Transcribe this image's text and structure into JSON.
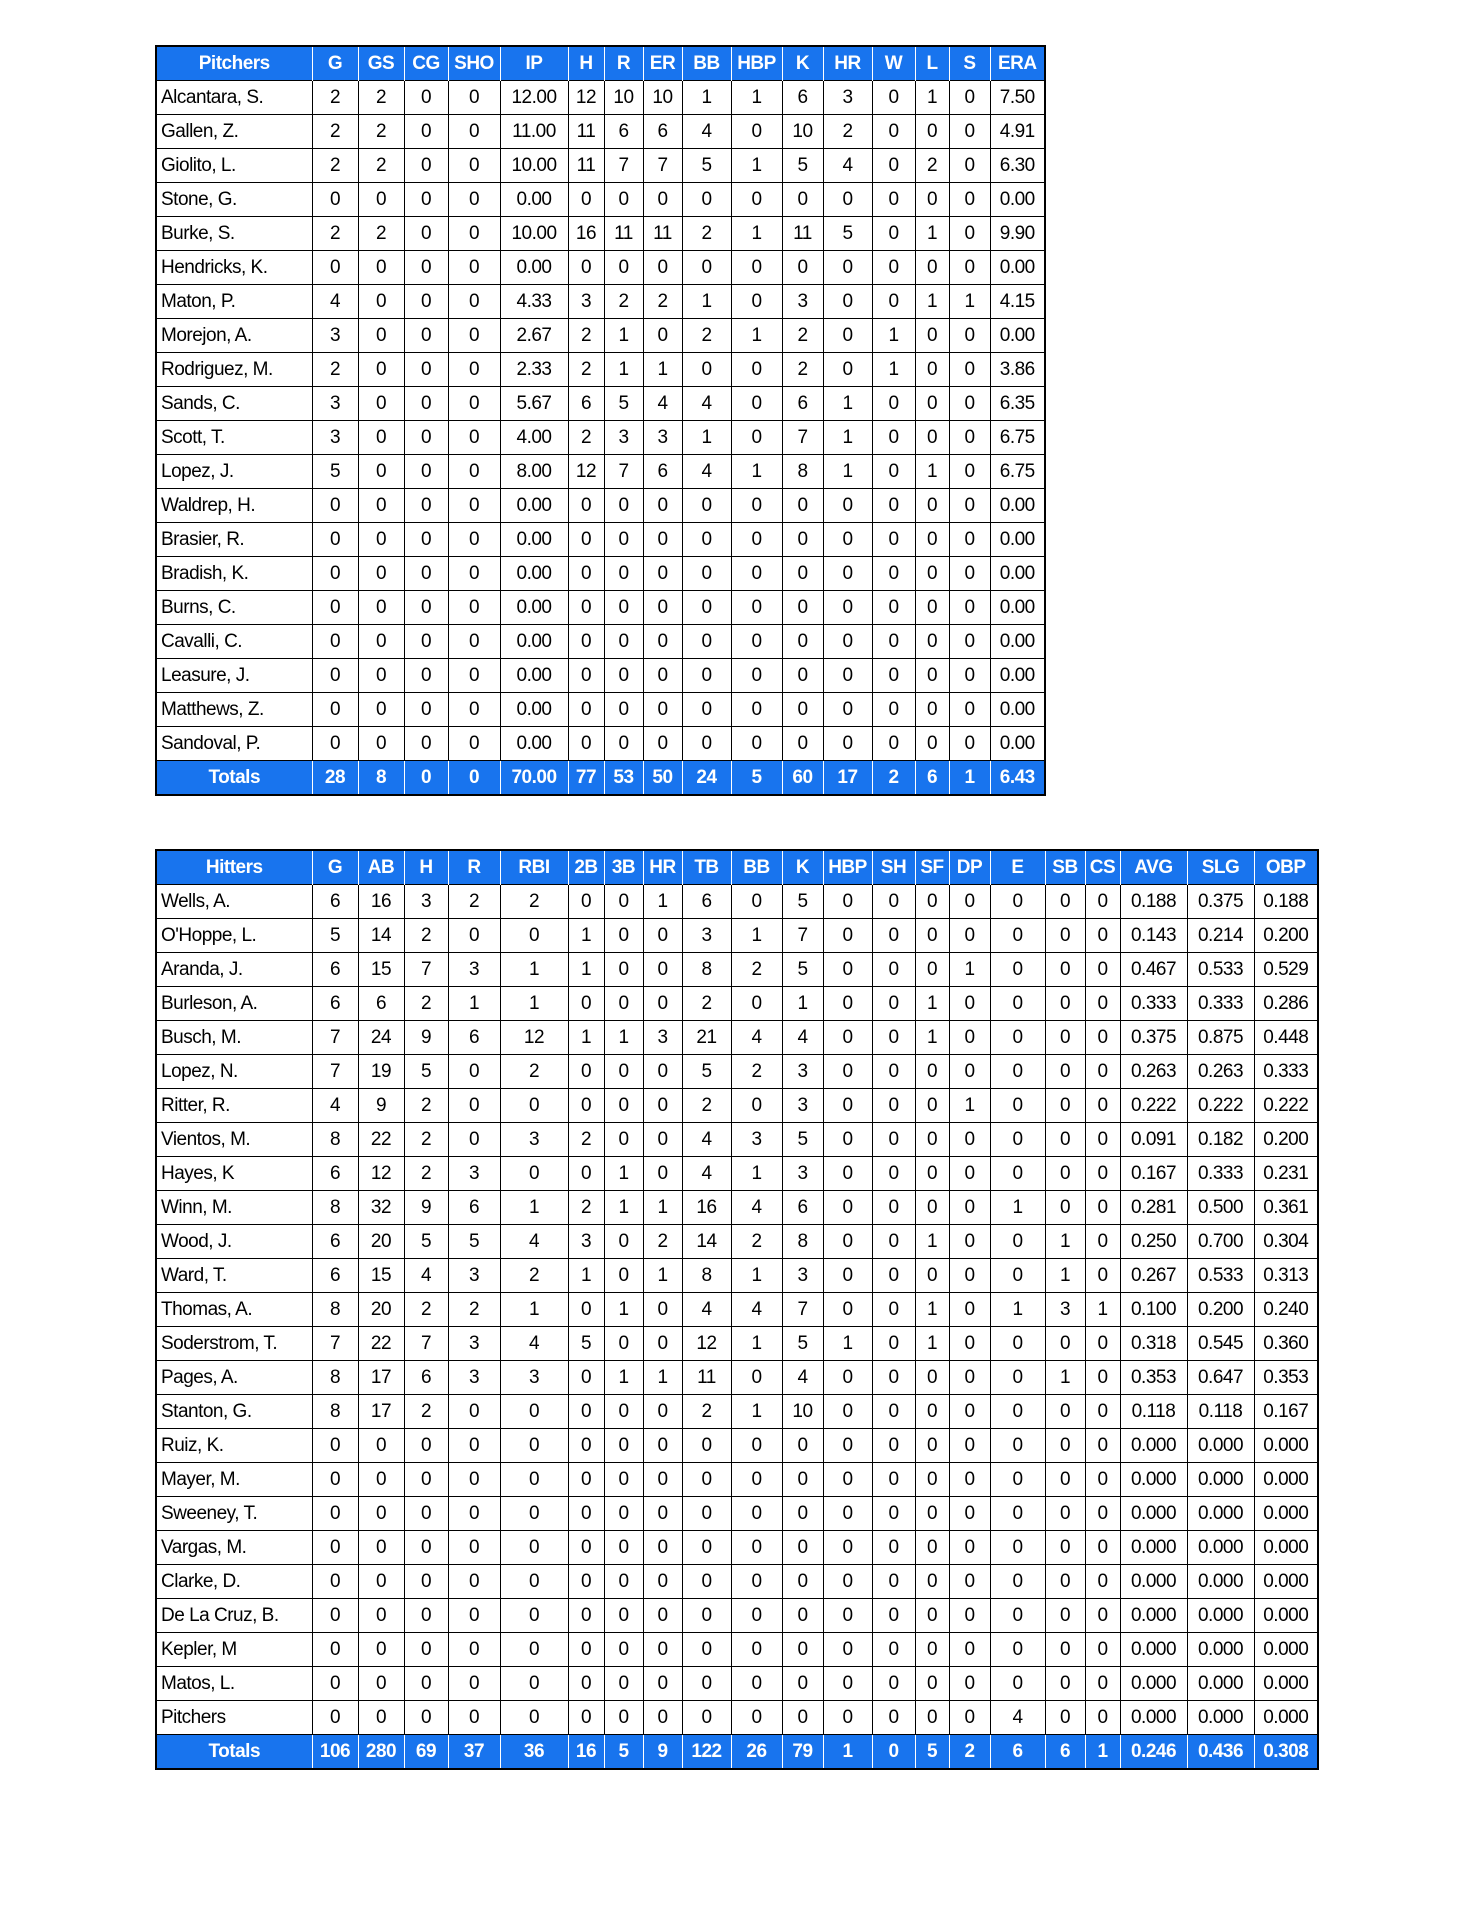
{
  "colors": {
    "header_bg": "#1874ee",
    "header_text": "#ffffff"
  },
  "pitchers": {
    "columns": [
      "Pitchers",
      "G",
      "GS",
      "CG",
      "SHO",
      "IP",
      "H",
      "R",
      "ER",
      "BB",
      "HBP",
      "K",
      "HR",
      "W",
      "L",
      "S",
      "ERA"
    ],
    "rows": [
      [
        "Alcantara, S.",
        "2",
        "2",
        "0",
        "0",
        "12.00",
        "12",
        "10",
        "10",
        "1",
        "1",
        "6",
        "3",
        "0",
        "1",
        "0",
        "7.50"
      ],
      [
        "Gallen, Z.",
        "2",
        "2",
        "0",
        "0",
        "11.00",
        "11",
        "6",
        "6",
        "4",
        "0",
        "10",
        "2",
        "0",
        "0",
        "0",
        "4.91"
      ],
      [
        "Giolito, L.",
        "2",
        "2",
        "0",
        "0",
        "10.00",
        "11",
        "7",
        "7",
        "5",
        "1",
        "5",
        "4",
        "0",
        "2",
        "0",
        "6.30"
      ],
      [
        "Stone, G.",
        "0",
        "0",
        "0",
        "0",
        "0.00",
        "0",
        "0",
        "0",
        "0",
        "0",
        "0",
        "0",
        "0",
        "0",
        "0",
        "0.00"
      ],
      [
        "Burke, S.",
        "2",
        "2",
        "0",
        "0",
        "10.00",
        "16",
        "11",
        "11",
        "2",
        "1",
        "11",
        "5",
        "0",
        "1",
        "0",
        "9.90"
      ],
      [
        "Hendricks, K.",
        "0",
        "0",
        "0",
        "0",
        "0.00",
        "0",
        "0",
        "0",
        "0",
        "0",
        "0",
        "0",
        "0",
        "0",
        "0",
        "0.00"
      ],
      [
        "Maton, P.",
        "4",
        "0",
        "0",
        "0",
        "4.33",
        "3",
        "2",
        "2",
        "1",
        "0",
        "3",
        "0",
        "0",
        "1",
        "1",
        "4.15"
      ],
      [
        "Morejon, A.",
        "3",
        "0",
        "0",
        "0",
        "2.67",
        "2",
        "1",
        "0",
        "2",
        "1",
        "2",
        "0",
        "1",
        "0",
        "0",
        "0.00"
      ],
      [
        "Rodriguez, M.",
        "2",
        "0",
        "0",
        "0",
        "2.33",
        "2",
        "1",
        "1",
        "0",
        "0",
        "2",
        "0",
        "1",
        "0",
        "0",
        "3.86"
      ],
      [
        "Sands, C.",
        "3",
        "0",
        "0",
        "0",
        "5.67",
        "6",
        "5",
        "4",
        "4",
        "0",
        "6",
        "1",
        "0",
        "0",
        "0",
        "6.35"
      ],
      [
        "Scott, T.",
        "3",
        "0",
        "0",
        "0",
        "4.00",
        "2",
        "3",
        "3",
        "1",
        "0",
        "7",
        "1",
        "0",
        "0",
        "0",
        "6.75"
      ],
      [
        "Lopez, J.",
        "5",
        "0",
        "0",
        "0",
        "8.00",
        "12",
        "7",
        "6",
        "4",
        "1",
        "8",
        "1",
        "0",
        "1",
        "0",
        "6.75"
      ],
      [
        "Waldrep, H.",
        "0",
        "0",
        "0",
        "0",
        "0.00",
        "0",
        "0",
        "0",
        "0",
        "0",
        "0",
        "0",
        "0",
        "0",
        "0",
        "0.00"
      ],
      [
        "Brasier, R.",
        "0",
        "0",
        "0",
        "0",
        "0.00",
        "0",
        "0",
        "0",
        "0",
        "0",
        "0",
        "0",
        "0",
        "0",
        "0",
        "0.00"
      ],
      [
        "Bradish, K.",
        "0",
        "0",
        "0",
        "0",
        "0.00",
        "0",
        "0",
        "0",
        "0",
        "0",
        "0",
        "0",
        "0",
        "0",
        "0",
        "0.00"
      ],
      [
        "Burns, C.",
        "0",
        "0",
        "0",
        "0",
        "0.00",
        "0",
        "0",
        "0",
        "0",
        "0",
        "0",
        "0",
        "0",
        "0",
        "0",
        "0.00"
      ],
      [
        "Cavalli, C.",
        "0",
        "0",
        "0",
        "0",
        "0.00",
        "0",
        "0",
        "0",
        "0",
        "0",
        "0",
        "0",
        "0",
        "0",
        "0",
        "0.00"
      ],
      [
        "Leasure, J.",
        "0",
        "0",
        "0",
        "0",
        "0.00",
        "0",
        "0",
        "0",
        "0",
        "0",
        "0",
        "0",
        "0",
        "0",
        "0",
        "0.00"
      ],
      [
        "Matthews, Z.",
        "0",
        "0",
        "0",
        "0",
        "0.00",
        "0",
        "0",
        "0",
        "0",
        "0",
        "0",
        "0",
        "0",
        "0",
        "0",
        "0.00"
      ],
      [
        "Sandoval, P.",
        "0",
        "0",
        "0",
        "0",
        "0.00",
        "0",
        "0",
        "0",
        "0",
        "0",
        "0",
        "0",
        "0",
        "0",
        "0",
        "0.00"
      ]
    ],
    "totals": [
      "Totals",
      "28",
      "8",
      "0",
      "0",
      "70.00",
      "77",
      "53",
      "50",
      "24",
      "5",
      "60",
      "17",
      "2",
      "6",
      "1",
      "6.43"
    ]
  },
  "hitters": {
    "columns": [
      "Hitters",
      "G",
      "AB",
      "H",
      "R",
      "RBI",
      "2B",
      "3B",
      "HR",
      "TB",
      "BB",
      "K",
      "HBP",
      "SH",
      "SF",
      "DP",
      "E",
      "SB",
      "CS",
      "AVG",
      "SLG",
      "OBP"
    ],
    "rows": [
      [
        "Wells, A.",
        "6",
        "16",
        "3",
        "2",
        "2",
        "0",
        "0",
        "1",
        "6",
        "0",
        "5",
        "0",
        "0",
        "0",
        "0",
        "0",
        "0",
        "0",
        "0.188",
        "0.375",
        "0.188"
      ],
      [
        "O'Hoppe, L.",
        "5",
        "14",
        "2",
        "0",
        "0",
        "1",
        "0",
        "0",
        "3",
        "1",
        "7",
        "0",
        "0",
        "0",
        "0",
        "0",
        "0",
        "0",
        "0.143",
        "0.214",
        "0.200"
      ],
      [
        "Aranda, J.",
        "6",
        "15",
        "7",
        "3",
        "1",
        "1",
        "0",
        "0",
        "8",
        "2",
        "5",
        "0",
        "0",
        "0",
        "1",
        "0",
        "0",
        "0",
        "0.467",
        "0.533",
        "0.529"
      ],
      [
        "Burleson, A.",
        "6",
        "6",
        "2",
        "1",
        "1",
        "0",
        "0",
        "0",
        "2",
        "0",
        "1",
        "0",
        "0",
        "1",
        "0",
        "0",
        "0",
        "0",
        "0.333",
        "0.333",
        "0.286"
      ],
      [
        "Busch, M.",
        "7",
        "24",
        "9",
        "6",
        "12",
        "1",
        "1",
        "3",
        "21",
        "4",
        "4",
        "0",
        "0",
        "1",
        "0",
        "0",
        "0",
        "0",
        "0.375",
        "0.875",
        "0.448"
      ],
      [
        "Lopez, N.",
        "7",
        "19",
        "5",
        "0",
        "2",
        "0",
        "0",
        "0",
        "5",
        "2",
        "3",
        "0",
        "0",
        "0",
        "0",
        "0",
        "0",
        "0",
        "0.263",
        "0.263",
        "0.333"
      ],
      [
        "Ritter, R.",
        "4",
        "9",
        "2",
        "0",
        "0",
        "0",
        "0",
        "0",
        "2",
        "0",
        "3",
        "0",
        "0",
        "0",
        "1",
        "0",
        "0",
        "0",
        "0.222",
        "0.222",
        "0.222"
      ],
      [
        "Vientos, M.",
        "8",
        "22",
        "2",
        "0",
        "3",
        "2",
        "0",
        "0",
        "4",
        "3",
        "5",
        "0",
        "0",
        "0",
        "0",
        "0",
        "0",
        "0",
        "0.091",
        "0.182",
        "0.200"
      ],
      [
        "Hayes, K",
        "6",
        "12",
        "2",
        "3",
        "0",
        "0",
        "1",
        "0",
        "4",
        "1",
        "3",
        "0",
        "0",
        "0",
        "0",
        "0",
        "0",
        "0",
        "0.167",
        "0.333",
        "0.231"
      ],
      [
        "Winn, M.",
        "8",
        "32",
        "9",
        "6",
        "1",
        "2",
        "1",
        "1",
        "16",
        "4",
        "6",
        "0",
        "0",
        "0",
        "0",
        "1",
        "0",
        "0",
        "0.281",
        "0.500",
        "0.361"
      ],
      [
        "Wood, J.",
        "6",
        "20",
        "5",
        "5",
        "4",
        "3",
        "0",
        "2",
        "14",
        "2",
        "8",
        "0",
        "0",
        "1",
        "0",
        "0",
        "1",
        "0",
        "0.250",
        "0.700",
        "0.304"
      ],
      [
        "Ward, T.",
        "6",
        "15",
        "4",
        "3",
        "2",
        "1",
        "0",
        "1",
        "8",
        "1",
        "3",
        "0",
        "0",
        "0",
        "0",
        "0",
        "1",
        "0",
        "0.267",
        "0.533",
        "0.313"
      ],
      [
        "Thomas, A.",
        "8",
        "20",
        "2",
        "2",
        "1",
        "0",
        "1",
        "0",
        "4",
        "4",
        "7",
        "0",
        "0",
        "1",
        "0",
        "1",
        "3",
        "1",
        "0.100",
        "0.200",
        "0.240"
      ],
      [
        "Soderstrom, T.",
        "7",
        "22",
        "7",
        "3",
        "4",
        "5",
        "0",
        "0",
        "12",
        "1",
        "5",
        "1",
        "0",
        "1",
        "0",
        "0",
        "0",
        "0",
        "0.318",
        "0.545",
        "0.360"
      ],
      [
        "Pages, A.",
        "8",
        "17",
        "6",
        "3",
        "3",
        "0",
        "1",
        "1",
        "11",
        "0",
        "4",
        "0",
        "0",
        "0",
        "0",
        "0",
        "1",
        "0",
        "0.353",
        "0.647",
        "0.353"
      ],
      [
        "Stanton, G.",
        "8",
        "17",
        "2",
        "0",
        "0",
        "0",
        "0",
        "0",
        "2",
        "1",
        "10",
        "0",
        "0",
        "0",
        "0",
        "0",
        "0",
        "0",
        "0.118",
        "0.118",
        "0.167"
      ],
      [
        "Ruiz, K.",
        "0",
        "0",
        "0",
        "0",
        "0",
        "0",
        "0",
        "0",
        "0",
        "0",
        "0",
        "0",
        "0",
        "0",
        "0",
        "0",
        "0",
        "0",
        "0.000",
        "0.000",
        "0.000"
      ],
      [
        "Mayer, M.",
        "0",
        "0",
        "0",
        "0",
        "0",
        "0",
        "0",
        "0",
        "0",
        "0",
        "0",
        "0",
        "0",
        "0",
        "0",
        "0",
        "0",
        "0",
        "0.000",
        "0.000",
        "0.000"
      ],
      [
        "Sweeney, T.",
        "0",
        "0",
        "0",
        "0",
        "0",
        "0",
        "0",
        "0",
        "0",
        "0",
        "0",
        "0",
        "0",
        "0",
        "0",
        "0",
        "0",
        "0",
        "0.000",
        "0.000",
        "0.000"
      ],
      [
        "Vargas, M.",
        "0",
        "0",
        "0",
        "0",
        "0",
        "0",
        "0",
        "0",
        "0",
        "0",
        "0",
        "0",
        "0",
        "0",
        "0",
        "0",
        "0",
        "0",
        "0.000",
        "0.000",
        "0.000"
      ],
      [
        "Clarke, D.",
        "0",
        "0",
        "0",
        "0",
        "0",
        "0",
        "0",
        "0",
        "0",
        "0",
        "0",
        "0",
        "0",
        "0",
        "0",
        "0",
        "0",
        "0",
        "0.000",
        "0.000",
        "0.000"
      ],
      [
        "De La Cruz, B.",
        "0",
        "0",
        "0",
        "0",
        "0",
        "0",
        "0",
        "0",
        "0",
        "0",
        "0",
        "0",
        "0",
        "0",
        "0",
        "0",
        "0",
        "0",
        "0.000",
        "0.000",
        "0.000"
      ],
      [
        "Kepler, M",
        "0",
        "0",
        "0",
        "0",
        "0",
        "0",
        "0",
        "0",
        "0",
        "0",
        "0",
        "0",
        "0",
        "0",
        "0",
        "0",
        "0",
        "0",
        "0.000",
        "0.000",
        "0.000"
      ],
      [
        "Matos, L.",
        "0",
        "0",
        "0",
        "0",
        "0",
        "0",
        "0",
        "0",
        "0",
        "0",
        "0",
        "0",
        "0",
        "0",
        "0",
        "0",
        "0",
        "0",
        "0.000",
        "0.000",
        "0.000"
      ],
      [
        "Pitchers",
        "0",
        "0",
        "0",
        "0",
        "0",
        "0",
        "0",
        "0",
        "0",
        "0",
        "0",
        "0",
        "0",
        "0",
        "0",
        "4",
        "0",
        "0",
        "0.000",
        "0.000",
        "0.000"
      ]
    ],
    "totals": [
      "Totals",
      "106",
      "280",
      "69",
      "37",
      "36",
      "16",
      "5",
      "9",
      "122",
      "26",
      "79",
      "1",
      "0",
      "5",
      "2",
      "6",
      "6",
      "1",
      "0.246",
      "0.436",
      "0.308"
    ]
  }
}
